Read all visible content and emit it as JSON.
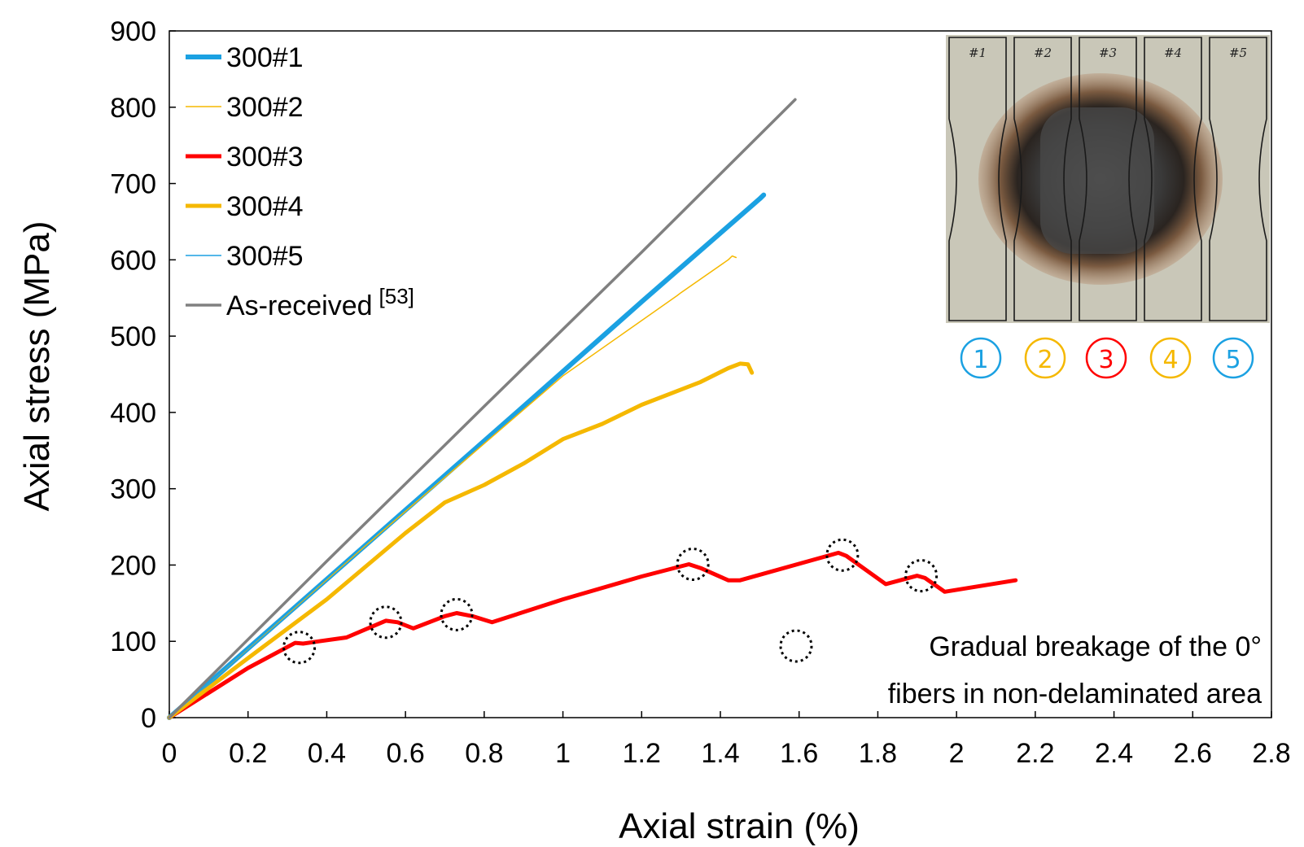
{
  "chart_data": {
    "type": "line",
    "xlabel": "Axial strain (%)",
    "ylabel": "Axial stress (MPa)",
    "xlim": [
      0,
      2.8
    ],
    "ylim": [
      0,
      900
    ],
    "xticks": [
      "0",
      "0.2",
      "0.4",
      "0.6",
      "0.8",
      "1",
      "1.2",
      "1.4",
      "1.6",
      "1.8",
      "2",
      "2.2",
      "2.4",
      "2.6",
      "2.8"
    ],
    "yticks": [
      "0",
      "100",
      "200",
      "300",
      "400",
      "500",
      "600",
      "700",
      "800",
      "900"
    ],
    "grid": false,
    "legend_position": "top-left",
    "series": [
      {
        "name": "300#1",
        "color": "#1ba1e2",
        "width": 6,
        "x": [
          0,
          0.3,
          0.6,
          0.9,
          1.2,
          1.5,
          1.51
        ],
        "y": [
          0,
          136,
          272,
          408,
          545,
          680,
          685
        ]
      },
      {
        "name": "300#2",
        "color": "#f5b800",
        "width": 1.5,
        "x": [
          0,
          0.5,
          1.0,
          1.29,
          1.3,
          1.42,
          1.43,
          1.44
        ],
        "y": [
          0,
          226,
          448,
          553,
          557,
          600,
          605,
          603
        ]
      },
      {
        "name": "300#3",
        "color": "#ff0000",
        "width": 5,
        "x": [
          0,
          0.2,
          0.32,
          0.34,
          0.38,
          0.45,
          0.55,
          0.58,
          0.62,
          0.7,
          0.73,
          0.77,
          0.82,
          1.0,
          1.2,
          1.32,
          1.35,
          1.42,
          1.45,
          1.7,
          1.72,
          1.82,
          1.9,
          1.92,
          1.97,
          2.15
        ],
        "y": [
          0,
          65,
          98,
          97,
          100,
          105,
          127,
          125,
          117,
          133,
          137,
          133,
          125,
          155,
          185,
          201,
          196,
          180,
          180,
          216,
          212,
          175,
          186,
          183,
          165,
          180
        ]
      },
      {
        "name": "300#4",
        "color": "#f5b800",
        "width": 5,
        "x": [
          0,
          0.2,
          0.4,
          0.6,
          0.7,
          0.8,
          0.9,
          1.0,
          1.1,
          1.2,
          1.3,
          1.35,
          1.42,
          1.45,
          1.47,
          1.48
        ],
        "y": [
          0,
          78,
          155,
          242,
          282,
          305,
          333,
          365,
          385,
          410,
          430,
          440,
          458,
          464,
          463,
          452
        ]
      },
      {
        "name": "300#5",
        "color": "#1ba1e2",
        "width": 1.5,
        "x": [
          0,
          0.5,
          1.0,
          1.5
        ],
        "y": [
          0,
          228,
          455,
          680
        ]
      },
      {
        "name": "As-received",
        "color": "#808080",
        "width": 3.5,
        "x": [
          0,
          0.4,
          0.8,
          1.2,
          1.59
        ],
        "y": [
          0,
          205,
          408,
          610,
          810
        ]
      }
    ],
    "breakage_markers": [
      {
        "x": 0.33,
        "y": 92
      },
      {
        "x": 0.55,
        "y": 125
      },
      {
        "x": 0.73,
        "y": 135
      },
      {
        "x": 1.33,
        "y": 201
      },
      {
        "x": 1.71,
        "y": 213
      },
      {
        "x": 1.91,
        "y": 186
      }
    ],
    "legend": {
      "labels": [
        "300#1",
        "300#2",
        "300#3",
        "300#4",
        "300#5",
        "As-received"
      ],
      "ref_suffix": "[53]"
    },
    "annotation": {
      "line1": "Gradual breakage of the 0°",
      "line2": "fibers in non-delaminated area"
    },
    "inset": {
      "specimen_labels": [
        "#1",
        "#2",
        "#3",
        "#4",
        "#5"
      ],
      "numbers": [
        "①",
        "②",
        "③",
        "④",
        "⑤"
      ],
      "number_colors": [
        "#1ba1e2",
        "#f5b800",
        "#ff0000",
        "#f5b800",
        "#1ba1e2"
      ]
    }
  }
}
